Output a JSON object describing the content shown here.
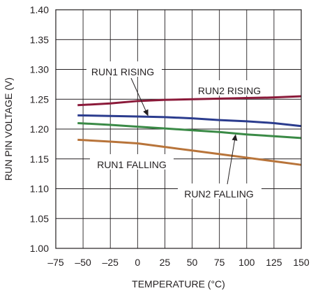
{
  "chart_data": {
    "type": "line",
    "xlabel": "TEMPERATURE (°C)",
    "ylabel": "RUN PIN VOLTAGE (V)",
    "xlim": [
      -75,
      150
    ],
    "ylim": [
      1.0,
      1.4
    ],
    "xticks": [
      "–75",
      "–50",
      "–25",
      "0",
      "25",
      "50",
      "75",
      "100",
      "125",
      "150"
    ],
    "yticks": [
      "1.00",
      "1.05",
      "1.10",
      "1.15",
      "1.20",
      "1.25",
      "1.30",
      "1.35",
      "1.40"
    ],
    "grid": true,
    "series": [
      {
        "name": "RUN2 RISING",
        "color": "#8b1a3a",
        "x": [
          -55,
          -25,
          0,
          25,
          50,
          75,
          100,
          125,
          150
        ],
        "y": [
          1.24,
          1.243,
          1.247,
          1.249,
          1.25,
          1.251,
          1.252,
          1.253,
          1.255
        ]
      },
      {
        "name": "RUN1 RISING",
        "color": "#2b3c8e",
        "x": [
          -55,
          -25,
          0,
          25,
          50,
          75,
          100,
          125,
          150
        ],
        "y": [
          1.223,
          1.222,
          1.221,
          1.22,
          1.218,
          1.215,
          1.213,
          1.21,
          1.205
        ]
      },
      {
        "name": "RUN2 FALLING",
        "color": "#3a8a46",
        "x": [
          -55,
          -25,
          0,
          25,
          50,
          75,
          100,
          125,
          150
        ],
        "y": [
          1.21,
          1.207,
          1.204,
          1.201,
          1.198,
          1.195,
          1.191,
          1.188,
          1.185
        ]
      },
      {
        "name": "RUN1 FALLING",
        "color": "#b8743a",
        "x": [
          -55,
          -25,
          0,
          25,
          50,
          75,
          100,
          125,
          150
        ],
        "y": [
          1.182,
          1.179,
          1.176,
          1.17,
          1.164,
          1.158,
          1.152,
          1.146,
          1.14
        ]
      }
    ],
    "annotations": [
      {
        "text": "RUN1 RISING",
        "series": "RUN1 RISING",
        "arrow": true
      },
      {
        "text": "RUN2 RISING",
        "series": "RUN2 RISING",
        "arrow": false
      },
      {
        "text": "RUN1 FALLING",
        "series": "RUN1 FALLING",
        "arrow": false
      },
      {
        "text": "RUN2 FALLING",
        "series": "RUN2 FALLING",
        "arrow": true
      }
    ]
  }
}
